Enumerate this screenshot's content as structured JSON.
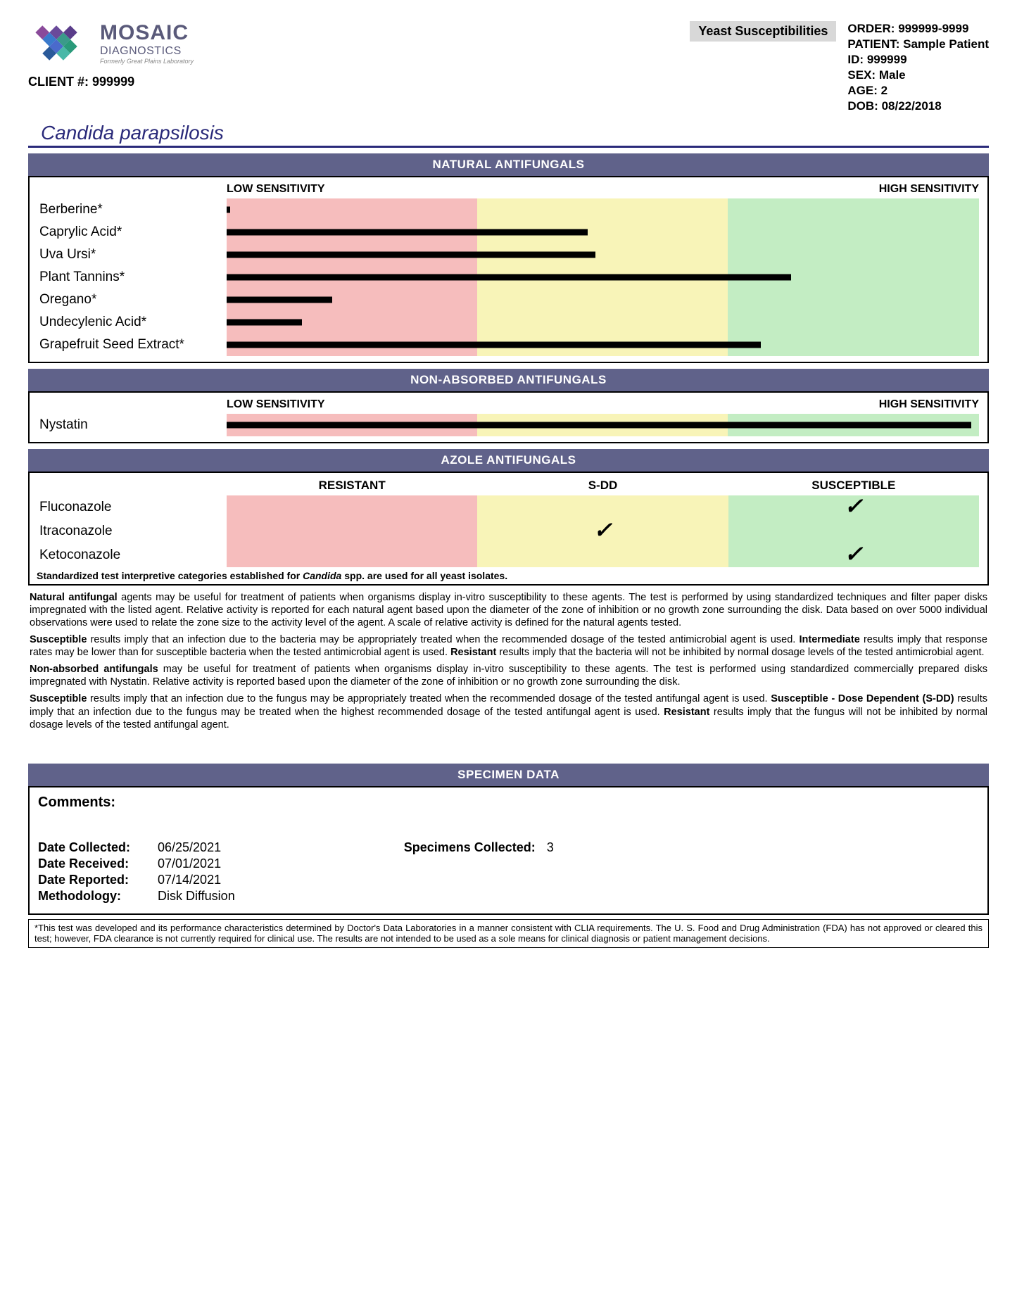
{
  "header": {
    "brand": "MOSAIC",
    "brand_sub": "DIAGNOSTICS",
    "tagline": "Formerly Great Plains Laboratory",
    "client_label": "CLIENT #:",
    "client_num": "999999",
    "category": "Yeast Susceptibilities",
    "patient": {
      "order_label": "ORDER:",
      "order": "999999-9999",
      "patient_label": "PATIENT:",
      "patient": "Sample Patient",
      "id_label": "ID:",
      "id": "999999",
      "sex_label": "SEX:",
      "sex": "Male",
      "age_label": "AGE:",
      "age": "2",
      "dob_label": "DOB:",
      "dob": "08/22/2018"
    }
  },
  "organism": "Candida parapsilosis",
  "zones": {
    "colors": [
      "#f6bdbd",
      "#f8f4b8",
      "#c3edc3"
    ],
    "splits": [
      33.3,
      66.6
    ]
  },
  "axis": {
    "low": "LOW SENSITIVITY",
    "high": "HIGH SENSITIVITY"
  },
  "sections": {
    "natural": {
      "title": "NATURAL ANTIFUNGALS",
      "rows": [
        {
          "label": "Berberine*",
          "value": 0.5
        },
        {
          "label": "Caprylic Acid*",
          "value": 48
        },
        {
          "label": "Uva Ursi*",
          "value": 49
        },
        {
          "label": "Plant Tannins*",
          "value": 75
        },
        {
          "label": "Oregano*",
          "value": 14
        },
        {
          "label": "Undecylenic Acid*",
          "value": 10
        },
        {
          "label": "Grapefruit Seed Extract*",
          "value": 71
        }
      ]
    },
    "nonabsorbed": {
      "title": "NON-ABSORBED ANTIFUNGALS",
      "rows": [
        {
          "label": "Nystatin",
          "value": 99
        }
      ]
    },
    "azole": {
      "title": "AZOLE ANTIFUNGALS",
      "columns": [
        "RESISTANT",
        "S-DD",
        "SUSCEPTIBLE"
      ],
      "rows": [
        {
          "label": "Fluconazole",
          "mark": 2
        },
        {
          "label": "Itraconazole",
          "mark": 1
        },
        {
          "label": "Ketoconazole",
          "mark": 2
        }
      ],
      "footnote_pre": "Standardized test interpretive categories established for ",
      "footnote_italic": "Candida",
      "footnote_post": " spp. are used for all yeast isolates."
    }
  },
  "paragraphs": {
    "p1_b1": "Natural antifungal",
    "p1": " agents may be useful for treatment of patients when organisms display in-vitro susceptibility to these agents. The test is performed by using standardized techniques and filter paper disks impregnated with the listed agent. Relative activity is reported for each natural agent based upon the diameter of the zone of inhibition or no growth zone surrounding the disk. Data based on over 5000 individual observations were used to relate the zone size to the activity level of the agent. A scale of relative activity is defined for the natural agents tested.",
    "p2_b1": "Susceptible",
    "p2a": " results imply that an infection due to the bacteria may be appropriately treated when the recommended dosage of the tested antimicrobial agent is used. ",
    "p2_b2": "Intermediate",
    "p2b": " results imply that response rates may be lower than for susceptible bacteria when the tested antimicrobial agent is used. ",
    "p2_b3": "Resistant",
    "p2c": " results imply that the bacteria will not be inhibited by normal dosage levels of the tested antimicrobial agent.",
    "p3_b1": "Non-absorbed antifungals",
    "p3": " may be useful for treatment of patients when organisms display in-vitro susceptibility to these agents. The test is performed using standardized commercially prepared disks impregnated with Nystatin. Relative activity is reported based upon the diameter of the zone of inhibition or no growth zone surrounding the disk.",
    "p4_b1": "Susceptible",
    "p4a": " results imply that an infection due to the fungus may be appropriately treated when the recommended dosage of the tested antifungal agent is used. ",
    "p4_b2": "Susceptible - Dose Dependent (S-DD)",
    "p4b": " results imply that an infection due to the fungus may be treated when the highest recommended dosage of the tested antifungal agent is used. ",
    "p4_b3": "Resistant",
    "p4c": " results imply that the fungus will not be inhibited by normal dosage levels of the tested antifungal agent."
  },
  "specimen": {
    "title": "SPECIMEN DATA",
    "comments_label": "Comments:",
    "collected_label": "Date Collected:",
    "collected": "06/25/2021",
    "received_label": "Date Received:",
    "received": "07/01/2021",
    "reported_label": "Date Reported:",
    "reported": "07/14/2021",
    "method_label": "Methodology:",
    "method": "Disk Diffusion",
    "spec_count_label": "Specimens Collected:",
    "spec_count": "3"
  },
  "disclaimer": "*This test was developed and its performance characteristics determined by Doctor's Data Laboratories in a manner consistent with CLIA requirements. The U. S. Food and Drug Administration (FDA) has not approved or cleared this test; however, FDA clearance is not currently required for clinical use. The results are not intended to be used as a sole means for clinical diagnosis or patient management decisions.",
  "logo_colors": [
    "#5a3d8a",
    "#2a9a7a",
    "#3a7acc",
    "#8a4a9a",
    "#48b8a8",
    "#2a5a9a",
    "#6a4a9a",
    "#3a9a8a",
    "#4a6acc"
  ]
}
